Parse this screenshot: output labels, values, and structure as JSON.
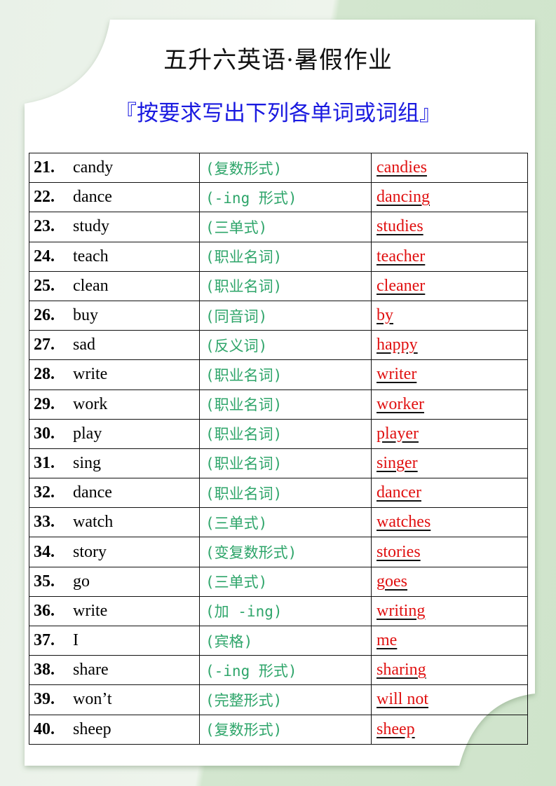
{
  "header": {
    "title": "五升六英语·暑假作业",
    "subtitle": "『按要求写出下列各单词或词组』"
  },
  "rows": [
    {
      "num": "21.",
      "word": "candy",
      "hint": "(复数形式)",
      "answer": "candies"
    },
    {
      "num": "22.",
      "word": "dance",
      "hint": "(-ing 形式)",
      "answer": "dancing"
    },
    {
      "num": "23.",
      "word": "study",
      "hint": "(三单式)",
      "answer": "studies"
    },
    {
      "num": "24.",
      "word": "teach",
      "hint": "(职业名词)",
      "answer": "teacher"
    },
    {
      "num": "25.",
      "word": "clean",
      "hint": "(职业名词)",
      "answer": "cleaner"
    },
    {
      "num": "26.",
      "word": "buy",
      "hint": "(同音词)",
      "answer": "by"
    },
    {
      "num": "27.",
      "word": "sad",
      "hint": "(反义词)",
      "answer": "happy"
    },
    {
      "num": "28.",
      "word": "write",
      "hint": "(职业名词)",
      "answer": "writer"
    },
    {
      "num": "29.",
      "word": "work",
      "hint": "(职业名词)",
      "answer": "worker"
    },
    {
      "num": "30.",
      "word": "play",
      "hint": "(职业名词)",
      "answer": "player"
    },
    {
      "num": "31.",
      "word": "sing",
      "hint": "(职业名词)",
      "answer": "singer"
    },
    {
      "num": "32.",
      "word": "dance",
      "hint": "(职业名词)",
      "answer": "dancer"
    },
    {
      "num": "33.",
      "word": "watch",
      "hint": "(三单式)",
      "answer": "watches"
    },
    {
      "num": "34.",
      "word": "story",
      "hint": "(变复数形式)",
      "answer": "stories"
    },
    {
      "num": "35.",
      "word": "go",
      "hint": "(三单式)",
      "answer": "goes"
    },
    {
      "num": "36.",
      "word": "write",
      "hint": "(加 -ing)",
      "answer": "writing"
    },
    {
      "num": "37.",
      "word": "I",
      "hint": "(宾格)",
      "answer": "me"
    },
    {
      "num": "38.",
      "word": "share",
      "hint": "(-ing 形式)",
      "answer": "sharing"
    },
    {
      "num": "39.",
      "word": "won’t",
      "hint": "(完整形式)",
      "answer": "will not"
    },
    {
      "num": "40.",
      "word": "sheep",
      "hint": "(复数形式)",
      "answer": "sheep"
    }
  ],
  "colors": {
    "hint": "#2ea56a",
    "answer": "#e01010",
    "subtitle": "#1a1ae0"
  }
}
